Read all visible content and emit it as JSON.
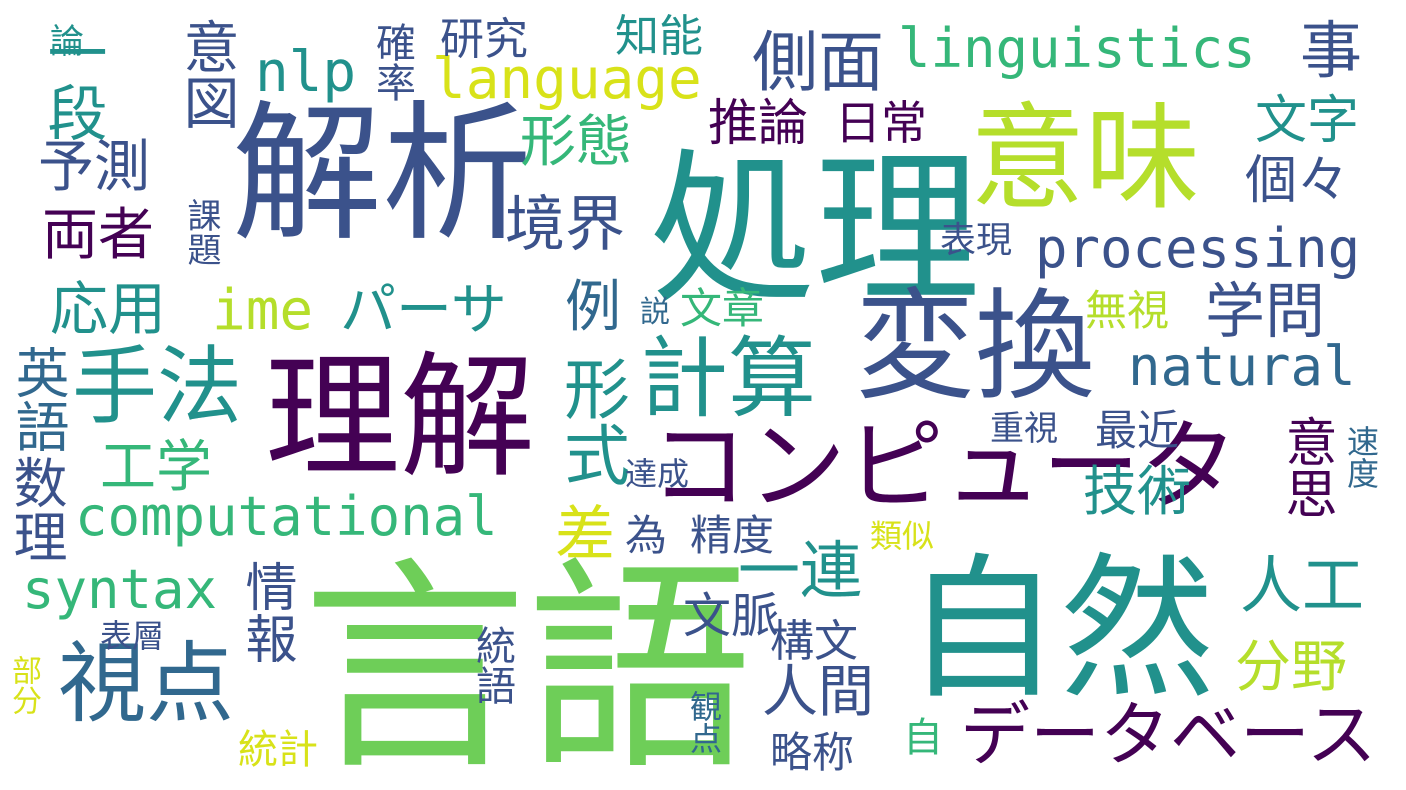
{
  "colors": {
    "background": "#ffffff",
    "dark_purple": "#440154",
    "indigo": "#3b528b",
    "slate_blue": "#31688e",
    "teal": "#21918c",
    "green": "#35b779",
    "light_green": "#6ece58",
    "lime": "#b5de2b",
    "yellow": "#d8e219"
  },
  "words": [
    "言語",
    "自然",
    "処理",
    "解析",
    "意味",
    "理解",
    "変換",
    "コンピュータ",
    "計算",
    "手法",
    "視点",
    "データベース",
    "processing",
    "computational",
    "linguistics",
    "natural",
    "language",
    "syntax",
    "nlp",
    "ime",
    "パーサ",
    "形態",
    "側面",
    "一段",
    "意図",
    "予測",
    "両者",
    "推論",
    "日常",
    "境界",
    "個々",
    "文字",
    "事",
    "研究",
    "知能",
    "確率",
    "論",
    "課題",
    "表現",
    "応用",
    "例",
    "文章",
    "学問",
    "無視",
    "説",
    "形式",
    "数理",
    "英語",
    "工学",
    "差",
    "一連",
    "為",
    "精度",
    "最近",
    "重視",
    "達成",
    "技術",
    "意思",
    "速度",
    "類似",
    "人工",
    "情報",
    "文脈",
    "構文",
    "表層",
    "統語",
    "人間",
    "分野",
    "部分",
    "観点",
    "自",
    "統計",
    "略称"
  ]
}
